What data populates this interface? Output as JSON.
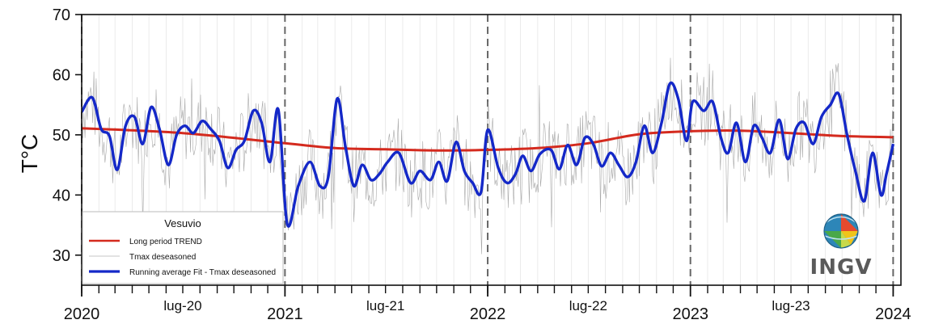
{
  "chart_data": {
    "type": "line",
    "title": "",
    "xlabel": "",
    "ylabel": "T°C",
    "ylim": [
      25,
      70
    ],
    "yticks": [
      30,
      40,
      50,
      60,
      70
    ],
    "xlim": [
      "2020-01-01",
      "2024-01-15"
    ],
    "major_x_ticks": [
      {
        "date": "2020-01-01",
        "label": "2020"
      },
      {
        "date": "2021-01-01",
        "label": "2021"
      },
      {
        "date": "2022-01-01",
        "label": "2022"
      },
      {
        "date": "2023-01-01",
        "label": "2023"
      },
      {
        "date": "2024-01-01",
        "label": "2024"
      }
    ],
    "mid_x_labels": [
      {
        "date": "2020-07-01",
        "label": "lug-20"
      },
      {
        "date": "2021-07-01",
        "label": "lug-21"
      },
      {
        "date": "2022-07-01",
        "label": "lug-22"
      },
      {
        "date": "2023-07-01",
        "label": "lug-23"
      }
    ],
    "grid": "vertical dashed lines at year boundaries; light monthly gridlines",
    "legend": {
      "title": "Vesuvio",
      "placement": "bottom-left"
    },
    "series": [
      {
        "name": "Long period TREND",
        "color": "#d42a1e",
        "style": "thick",
        "points": [
          [
            "2020-01-01",
            51.1
          ],
          [
            "2020-07-01",
            50.3
          ],
          [
            "2021-01-01",
            48.6
          ],
          [
            "2021-04-01",
            47.8
          ],
          [
            "2021-07-01",
            47.6
          ],
          [
            "2021-10-01",
            47.4
          ],
          [
            "2022-01-01",
            47.5
          ],
          [
            "2022-04-01",
            47.8
          ],
          [
            "2022-07-01",
            48.6
          ],
          [
            "2022-10-01",
            50.1
          ],
          [
            "2023-01-01",
            50.6
          ],
          [
            "2023-04-01",
            50.7
          ],
          [
            "2023-07-01",
            50.3
          ],
          [
            "2023-10-01",
            49.8
          ],
          [
            "2024-01-01",
            49.6
          ]
        ]
      },
      {
        "name": "Tmax deseasoned",
        "color": "#9a9a9a",
        "style": "thin",
        "daily_noise_amplitude": 6
      },
      {
        "name": "Running average Fit - Tmax deseasoned",
        "color": "#1428c8",
        "style": "thick",
        "points": [
          [
            "2020-01-01",
            53.8
          ],
          [
            "2020-01-20",
            56.2
          ],
          [
            "2020-02-05",
            51.0
          ],
          [
            "2020-02-20",
            49.8
          ],
          [
            "2020-03-05",
            44.2
          ],
          [
            "2020-03-20",
            51.5
          ],
          [
            "2020-04-05",
            53.0
          ],
          [
            "2020-04-20",
            48.5
          ],
          [
            "2020-05-05",
            54.6
          ],
          [
            "2020-05-20",
            51.0
          ],
          [
            "2020-06-05",
            45.0
          ],
          [
            "2020-06-20",
            50.0
          ],
          [
            "2020-07-05",
            51.5
          ],
          [
            "2020-07-20",
            50.3
          ],
          [
            "2020-08-05",
            52.3
          ],
          [
            "2020-08-20",
            51.0
          ],
          [
            "2020-09-05",
            49.0
          ],
          [
            "2020-09-20",
            44.5
          ],
          [
            "2020-10-05",
            47.5
          ],
          [
            "2020-10-20",
            49.0
          ],
          [
            "2020-11-05",
            54.0
          ],
          [
            "2020-11-20",
            52.0
          ],
          [
            "2020-12-05",
            45.5
          ],
          [
            "2020-12-20",
            54.2
          ],
          [
            "2021-01-05",
            35.2
          ],
          [
            "2021-01-25",
            41.5
          ],
          [
            "2021-02-15",
            45.5
          ],
          [
            "2021-03-05",
            41.5
          ],
          [
            "2021-03-20",
            43.0
          ],
          [
            "2021-04-05",
            56.0
          ],
          [
            "2021-04-20",
            48.0
          ],
          [
            "2021-05-05",
            41.5
          ],
          [
            "2021-05-20",
            45.0
          ],
          [
            "2021-06-05",
            42.5
          ],
          [
            "2021-06-20",
            43.5
          ],
          [
            "2021-07-05",
            45.5
          ],
          [
            "2021-07-25",
            47.0
          ],
          [
            "2021-08-15",
            42.0
          ],
          [
            "2021-09-01",
            44.0
          ],
          [
            "2021-09-20",
            42.5
          ],
          [
            "2021-10-05",
            45.5
          ],
          [
            "2021-10-20",
            42.3
          ],
          [
            "2021-11-05",
            48.8
          ],
          [
            "2021-11-20",
            44.0
          ],
          [
            "2021-12-05",
            42.0
          ],
          [
            "2021-12-20",
            40.5
          ],
          [
            "2022-01-01",
            50.8
          ],
          [
            "2022-01-20",
            44.5
          ],
          [
            "2022-02-05",
            42.0
          ],
          [
            "2022-02-20",
            43.5
          ],
          [
            "2022-03-05",
            46.5
          ],
          [
            "2022-03-20",
            44.0
          ],
          [
            "2022-04-05",
            46.8
          ],
          [
            "2022-04-25",
            47.5
          ],
          [
            "2022-05-10",
            44.3
          ],
          [
            "2022-05-25",
            48.3
          ],
          [
            "2022-06-10",
            45.0
          ],
          [
            "2022-06-25",
            49.5
          ],
          [
            "2022-07-10",
            48.5
          ],
          [
            "2022-07-25",
            44.8
          ],
          [
            "2022-08-10",
            47.0
          ],
          [
            "2022-08-25",
            45.0
          ],
          [
            "2022-09-10",
            43.0
          ],
          [
            "2022-09-25",
            45.5
          ],
          [
            "2022-10-10",
            51.5
          ],
          [
            "2022-10-25",
            47.0
          ],
          [
            "2022-11-10",
            52.0
          ],
          [
            "2022-11-25",
            58.5
          ],
          [
            "2022-12-10",
            56.0
          ],
          [
            "2022-12-25",
            49.0
          ],
          [
            "2023-01-05",
            55.5
          ],
          [
            "2023-01-25",
            54.0
          ],
          [
            "2023-02-10",
            55.5
          ],
          [
            "2023-02-25",
            49.5
          ],
          [
            "2023-03-10",
            47.0
          ],
          [
            "2023-03-25",
            52.0
          ],
          [
            "2023-04-10",
            45.5
          ],
          [
            "2023-04-25",
            51.5
          ],
          [
            "2023-05-10",
            49.5
          ],
          [
            "2023-05-25",
            47.0
          ],
          [
            "2023-06-10",
            52.5
          ],
          [
            "2023-06-25",
            46.0
          ],
          [
            "2023-07-10",
            51.0
          ],
          [
            "2023-07-25",
            52.0
          ],
          [
            "2023-08-10",
            48.5
          ],
          [
            "2023-08-25",
            53.0
          ],
          [
            "2023-09-10",
            55.0
          ],
          [
            "2023-09-25",
            56.8
          ],
          [
            "2023-10-10",
            50.0
          ],
          [
            "2023-10-25",
            44.0
          ],
          [
            "2023-11-10",
            39.0
          ],
          [
            "2023-11-25",
            47.0
          ],
          [
            "2023-12-10",
            40.0
          ],
          [
            "2023-12-20",
            43.5
          ],
          [
            "2024-01-01",
            48.5
          ]
        ]
      }
    ]
  },
  "logo": {
    "text": "INGV"
  }
}
